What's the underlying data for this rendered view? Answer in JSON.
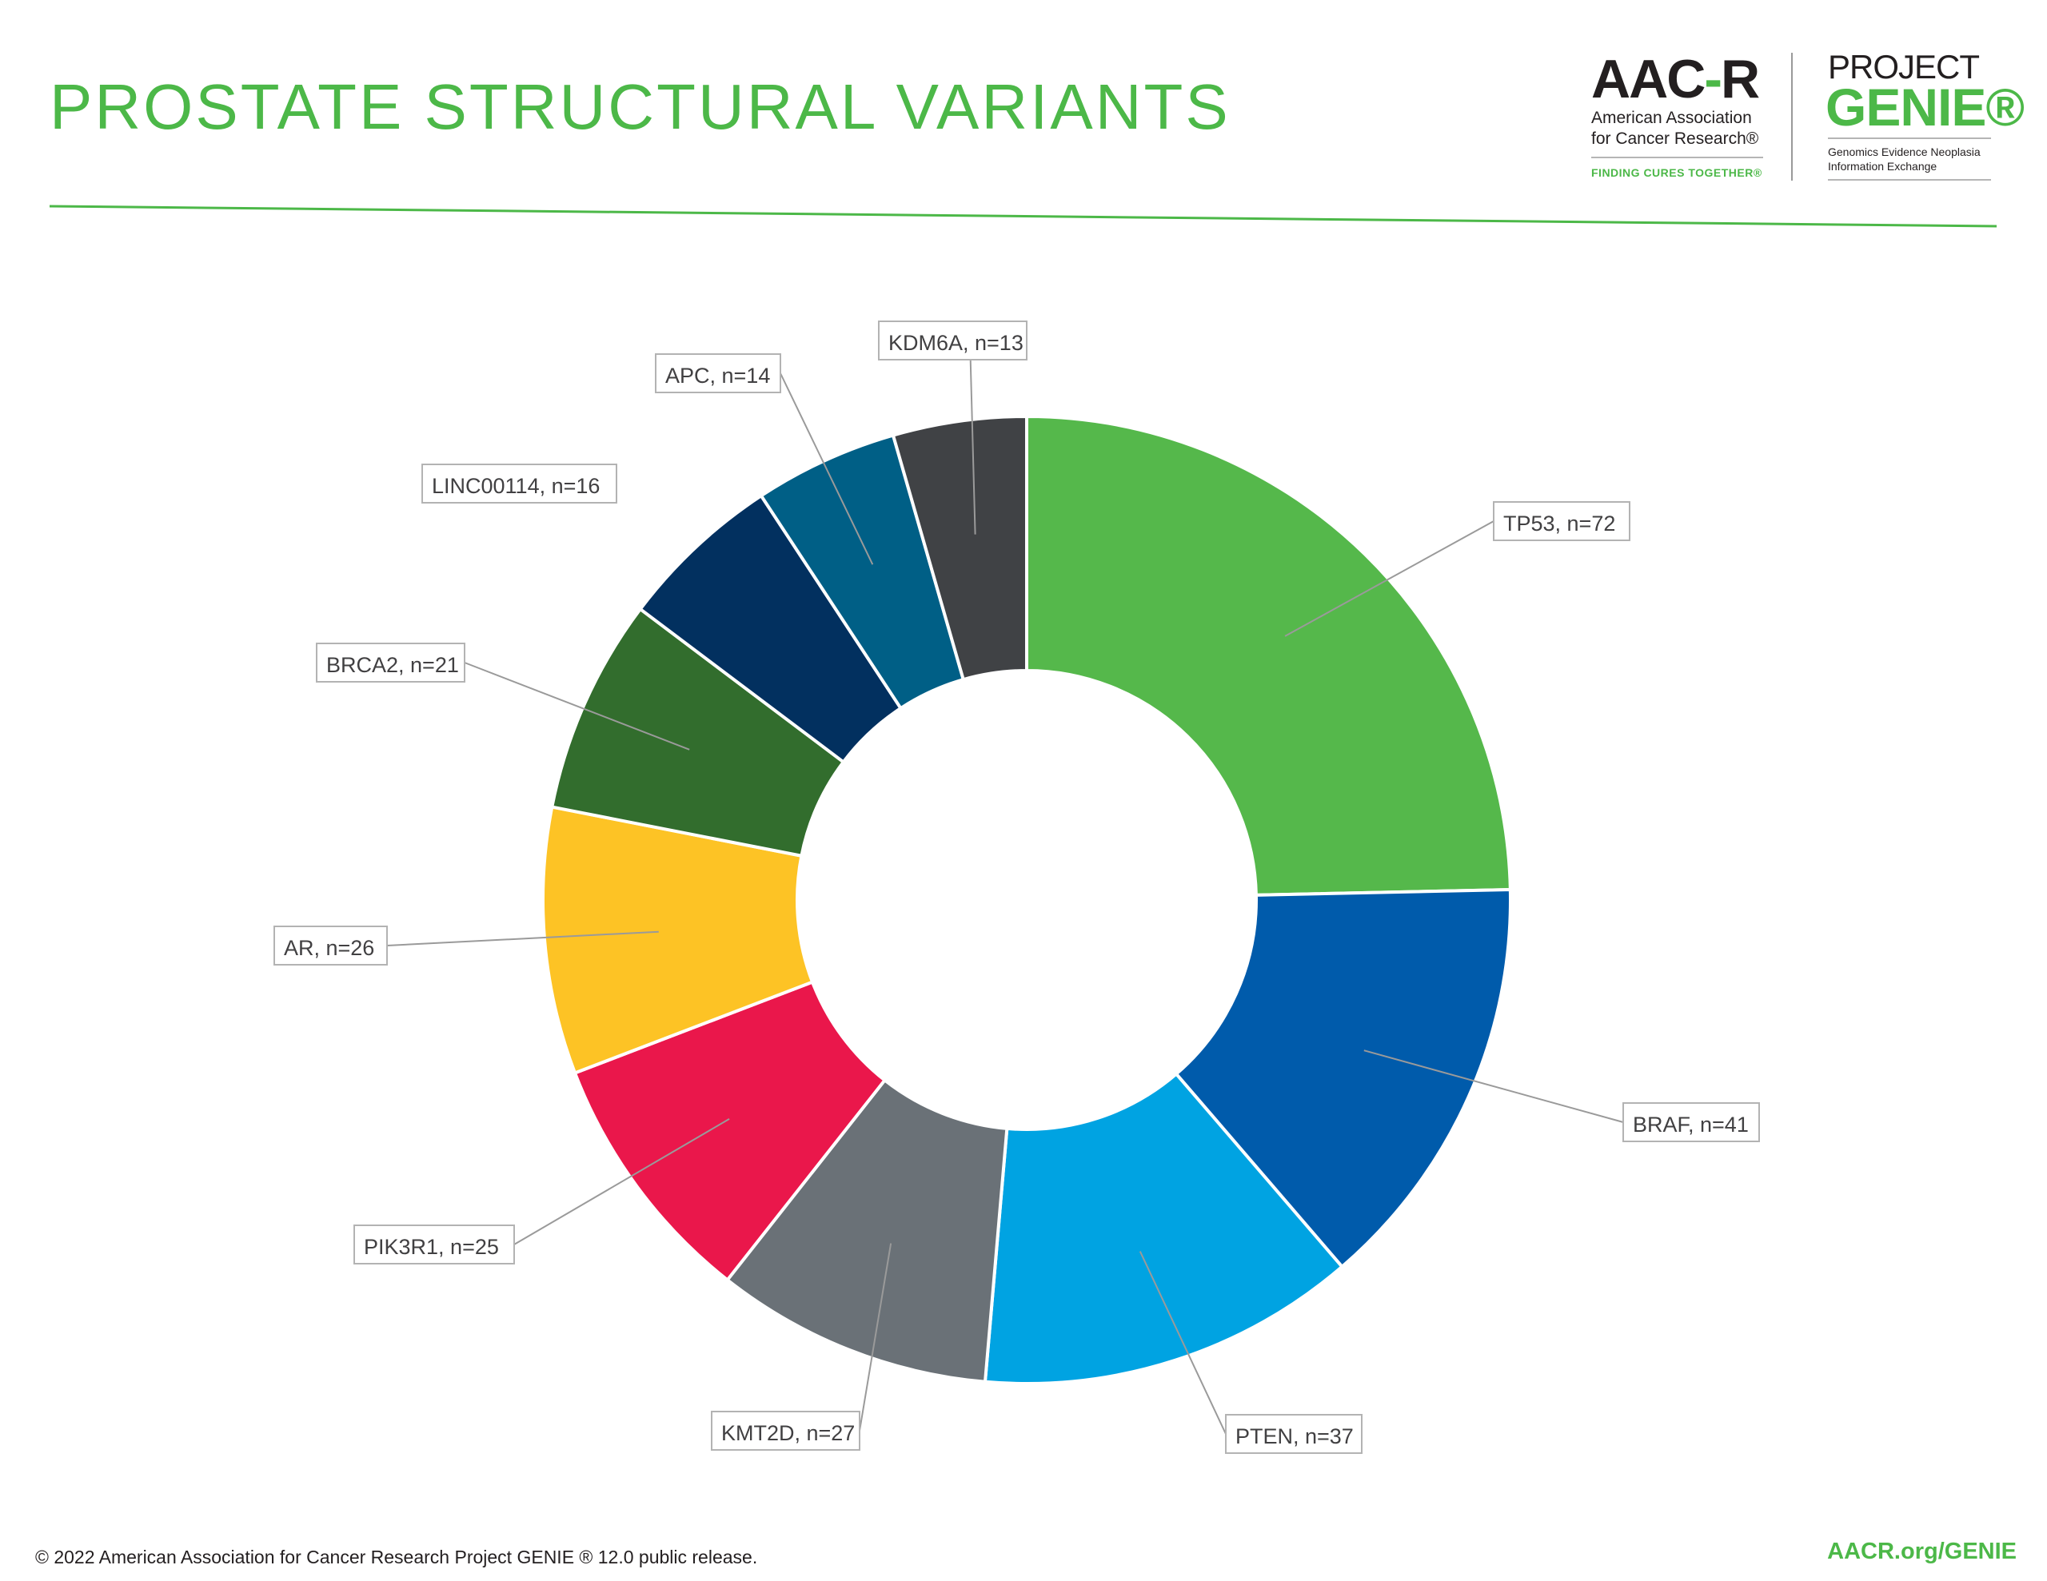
{
  "header": {
    "title": "PROSTATE STRUCTURAL VARIANTS"
  },
  "logos": {
    "aacr_mark": "AACR",
    "aacr_line1": "American Association",
    "aacr_line2": "for Cancer Research®",
    "aacr_tagline": "FINDING CURES TOGETHER®",
    "genie_top": "PROJECT",
    "genie_main": "GENIE®",
    "genie_sub1": "Genomics Evidence Neoplasia",
    "genie_sub2": "Information Exchange"
  },
  "footer": {
    "copyright": "© 2022 American Association for Cancer Research Project GENIE ® 12.0 public release.",
    "url": "AACR.org/GENIE"
  },
  "colors": {
    "brand_green": "#4cb848"
  },
  "chart_data": {
    "type": "pie",
    "variant": "donut",
    "title": "PROSTATE STRUCTURAL VARIANTS",
    "start_at": "12 o'clock",
    "direction": "clockwise",
    "slices": [
      {
        "label": "TP53, n=72",
        "name": "TP53",
        "value": 72,
        "color": "#55b84b"
      },
      {
        "label": "BRAF, n=41",
        "name": "BRAF",
        "value": 41,
        "color": "#005bab"
      },
      {
        "label": "PTEN, n=37",
        "name": "PTEN",
        "value": 37,
        "color": "#00a3e2"
      },
      {
        "label": "KMT2D, n=27",
        "name": "KMT2D",
        "value": 27,
        "color": "#6a7177"
      },
      {
        "label": "PIK3R1, n=25",
        "name": "PIK3R1",
        "value": 25,
        "color": "#ea174b"
      },
      {
        "label": "AR, n=26",
        "name": "AR",
        "value": 26,
        "color": "#fdc325"
      },
      {
        "label": "BRCA2, n=21",
        "name": "BRCA2",
        "value": 21,
        "color": "#326d2d"
      },
      {
        "label": "LINC00114, n=16",
        "name": "LINC00114",
        "value": 16,
        "color": "#02305f"
      },
      {
        "label": "APC, n=14",
        "name": "APC",
        "value": 14,
        "color": "#005f86"
      },
      {
        "label": "KDM6A, n=13",
        "name": "KDM6A",
        "value": 13,
        "color": "#404245"
      }
    ]
  }
}
